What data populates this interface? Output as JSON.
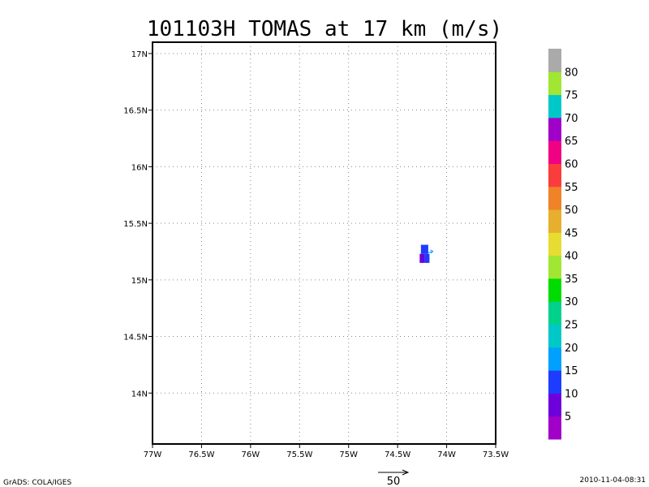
{
  "chart_data": {
    "type": "heatmap",
    "title": "101103H TOMAS at 17 km (m/s)",
    "x_axis": {
      "range": [
        -77.0,
        -73.5
      ],
      "ticks": [
        -77.0,
        -76.5,
        -76.0,
        -75.5,
        -75.0,
        -74.5,
        -74.0,
        -73.5
      ],
      "tick_labels": [
        "77W",
        "76.5W",
        "76W",
        "75.5W",
        "75W",
        "74.5W",
        "74W",
        "73.5W"
      ]
    },
    "y_axis": {
      "range": [
        13.55,
        17.1
      ],
      "ticks": [
        14.0,
        14.5,
        15.0,
        15.5,
        16.0,
        16.5,
        17.0
      ],
      "tick_labels": [
        "14N",
        "14.5N",
        "15N",
        "15.5N",
        "16N",
        "16.5N",
        "17N"
      ]
    },
    "grid": true,
    "cells": [
      {
        "lon": -74.225,
        "lat": 15.27,
        "dlon": 0.075,
        "dlat": 0.08,
        "value": 12
      },
      {
        "lon": -74.25,
        "lat": 15.19,
        "dlon": 0.05,
        "dlat": 0.08,
        "value": 8
      },
      {
        "lon": -74.2,
        "lat": 15.19,
        "dlon": 0.05,
        "dlat": 0.08,
        "value": 12
      }
    ],
    "vectors": [
      {
        "lon": -74.19,
        "lat": 15.24,
        "u": 4,
        "v": 1
      }
    ],
    "reference_vector": {
      "magnitude": 50,
      "label": "50"
    },
    "colorbar": {
      "labels": [
        "5",
        "10",
        "15",
        "20",
        "25",
        "30",
        "35",
        "40",
        "45",
        "50",
        "55",
        "60",
        "65",
        "70",
        "75",
        "80"
      ],
      "colors": [
        "#a000c8",
        "#6e00dc",
        "#1e3cff",
        "#00a0ff",
        "#00c8c8",
        "#00d28c",
        "#00dc00",
        "#a0e632",
        "#e6dc32",
        "#e6af2d",
        "#f08228",
        "#fa3c3c",
        "#f00082",
        "#a000c8",
        "#00c8c8",
        "#a0e632",
        "#aaaaaa"
      ]
    }
  },
  "footer": {
    "left": "GrADS: COLA/IGES",
    "right": "2010-11-04-08:31"
  }
}
